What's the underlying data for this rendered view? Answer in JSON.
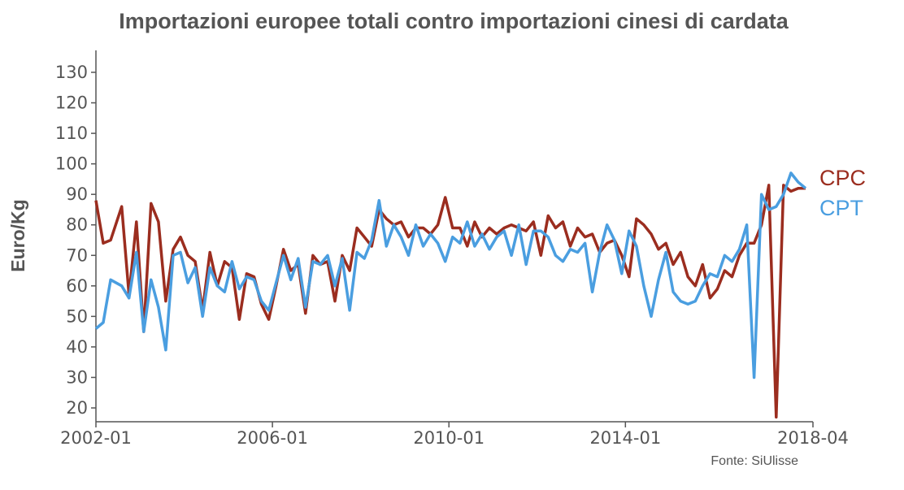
{
  "chart_data": {
    "type": "line",
    "title": "Importazioni europee totali contro importazioni cinesi di cardata",
    "ylabel": "Euro/Kg",
    "xlabel": "",
    "source": "Fonte: SiUlisse",
    "ylim": [
      15,
      138
    ],
    "y_ticks": [
      20,
      30,
      40,
      50,
      60,
      70,
      80,
      90,
      100,
      110,
      120,
      130
    ],
    "x_ticks": [
      "2002-01",
      "2006-01",
      "2010-01",
      "2014-01",
      "2018-04"
    ],
    "x_start": "2002-01",
    "x_end": "2018-04",
    "grid": false,
    "legend": "labels at line ends (right)",
    "series": [
      {
        "name": "CPC",
        "color": "#9b2d1f",
        "points": [
          [
            "2002-01",
            88
          ],
          [
            "2002-03",
            74
          ],
          [
            "2002-05",
            75
          ],
          [
            "2002-08",
            86
          ],
          [
            "2002-10",
            57
          ],
          [
            "2002-12",
            81
          ],
          [
            "2003-02",
            45
          ],
          [
            "2003-04",
            87
          ],
          [
            "2003-06",
            81
          ],
          [
            "2003-08",
            55
          ],
          [
            "2003-10",
            72
          ],
          [
            "2003-12",
            76
          ],
          [
            "2004-02",
            70
          ],
          [
            "2004-04",
            68
          ],
          [
            "2004-06",
            52
          ],
          [
            "2004-08",
            71
          ],
          [
            "2004-10",
            60
          ],
          [
            "2004-12",
            68
          ],
          [
            "2005-02",
            66
          ],
          [
            "2005-04",
            49
          ],
          [
            "2005-06",
            64
          ],
          [
            "2005-08",
            63
          ],
          [
            "2005-10",
            54
          ],
          [
            "2005-12",
            49
          ],
          [
            "2006-02",
            60
          ],
          [
            "2006-04",
            72
          ],
          [
            "2006-06",
            65
          ],
          [
            "2006-08",
            67
          ],
          [
            "2006-10",
            51
          ],
          [
            "2006-12",
            70
          ],
          [
            "2007-02",
            67
          ],
          [
            "2007-04",
            68
          ],
          [
            "2007-06",
            55
          ],
          [
            "2007-08",
            70
          ],
          [
            "2007-10",
            65
          ],
          [
            "2007-12",
            79
          ],
          [
            "2008-02",
            76
          ],
          [
            "2008-04",
            73
          ],
          [
            "2008-06",
            85
          ],
          [
            "2008-08",
            82
          ],
          [
            "2008-10",
            80
          ],
          [
            "2008-12",
            81
          ],
          [
            "2009-02",
            76
          ],
          [
            "2009-04",
            79
          ],
          [
            "2009-06",
            79
          ],
          [
            "2009-08",
            77
          ],
          [
            "2009-10",
            80
          ],
          [
            "2009-12",
            89
          ],
          [
            "2010-02",
            79
          ],
          [
            "2010-04",
            79
          ],
          [
            "2010-06",
            73
          ],
          [
            "2010-08",
            81
          ],
          [
            "2010-10",
            76
          ],
          [
            "2010-12",
            79
          ],
          [
            "2011-02",
            77
          ],
          [
            "2011-04",
            79
          ],
          [
            "2011-06",
            80
          ],
          [
            "2011-08",
            79
          ],
          [
            "2011-10",
            78
          ],
          [
            "2011-12",
            81
          ],
          [
            "2012-02",
            70
          ],
          [
            "2012-04",
            83
          ],
          [
            "2012-06",
            79
          ],
          [
            "2012-08",
            81
          ],
          [
            "2012-10",
            73
          ],
          [
            "2012-12",
            79
          ],
          [
            "2013-02",
            76
          ],
          [
            "2013-04",
            77
          ],
          [
            "2013-06",
            71
          ],
          [
            "2013-08",
            74
          ],
          [
            "2013-10",
            75
          ],
          [
            "2013-12",
            70
          ],
          [
            "2014-02",
            63
          ],
          [
            "2014-04",
            82
          ],
          [
            "2014-06",
            80
          ],
          [
            "2014-08",
            77
          ],
          [
            "2014-10",
            72
          ],
          [
            "2014-12",
            74
          ],
          [
            "2015-02",
            67
          ],
          [
            "2015-04",
            71
          ],
          [
            "2015-06",
            63
          ],
          [
            "2015-08",
            60
          ],
          [
            "2015-10",
            67
          ],
          [
            "2015-12",
            56
          ],
          [
            "2016-02",
            59
          ],
          [
            "2016-04",
            65
          ],
          [
            "2016-06",
            63
          ],
          [
            "2016-08",
            70
          ],
          [
            "2016-10",
            74
          ],
          [
            "2016-12",
            74
          ],
          [
            "2017-02",
            80
          ],
          [
            "2017-04",
            93
          ],
          [
            "2017-06",
            17
          ],
          [
            "2017-08",
            93
          ],
          [
            "2017-10",
            91
          ],
          [
            "2017-12",
            92
          ],
          [
            "2018-02",
            92
          ]
        ]
      },
      {
        "name": "CPT",
        "color": "#4a9ee0",
        "points": [
          [
            "2002-01",
            46
          ],
          [
            "2002-03",
            48
          ],
          [
            "2002-05",
            62
          ],
          [
            "2002-08",
            60
          ],
          [
            "2002-10",
            56
          ],
          [
            "2002-12",
            71
          ],
          [
            "2003-02",
            45
          ],
          [
            "2003-04",
            62
          ],
          [
            "2003-06",
            53
          ],
          [
            "2003-08",
            39
          ],
          [
            "2003-10",
            70
          ],
          [
            "2003-12",
            71
          ],
          [
            "2004-02",
            61
          ],
          [
            "2004-04",
            66
          ],
          [
            "2004-06",
            50
          ],
          [
            "2004-08",
            66
          ],
          [
            "2004-10",
            60
          ],
          [
            "2004-12",
            58
          ],
          [
            "2005-02",
            68
          ],
          [
            "2005-04",
            59
          ],
          [
            "2005-06",
            63
          ],
          [
            "2005-08",
            62
          ],
          [
            "2005-10",
            55
          ],
          [
            "2005-12",
            52
          ],
          [
            "2006-02",
            61
          ],
          [
            "2006-04",
            70
          ],
          [
            "2006-06",
            62
          ],
          [
            "2006-08",
            69
          ],
          [
            "2006-10",
            53
          ],
          [
            "2006-12",
            68
          ],
          [
            "2007-02",
            67
          ],
          [
            "2007-04",
            70
          ],
          [
            "2007-06",
            60
          ],
          [
            "2007-08",
            69
          ],
          [
            "2007-10",
            52
          ],
          [
            "2007-12",
            71
          ],
          [
            "2008-02",
            69
          ],
          [
            "2008-04",
            75
          ],
          [
            "2008-06",
            88
          ],
          [
            "2008-08",
            73
          ],
          [
            "2008-10",
            80
          ],
          [
            "2008-12",
            76
          ],
          [
            "2009-02",
            70
          ],
          [
            "2009-04",
            80
          ],
          [
            "2009-06",
            73
          ],
          [
            "2009-08",
            77
          ],
          [
            "2009-10",
            74
          ],
          [
            "2009-12",
            68
          ],
          [
            "2010-02",
            76
          ],
          [
            "2010-04",
            74
          ],
          [
            "2010-06",
            81
          ],
          [
            "2010-08",
            73
          ],
          [
            "2010-10",
            77
          ],
          [
            "2010-12",
            72
          ],
          [
            "2011-02",
            76
          ],
          [
            "2011-04",
            78
          ],
          [
            "2011-06",
            70
          ],
          [
            "2011-08",
            80
          ],
          [
            "2011-10",
            67
          ],
          [
            "2011-12",
            78
          ],
          [
            "2012-02",
            78
          ],
          [
            "2012-04",
            76
          ],
          [
            "2012-06",
            70
          ],
          [
            "2012-08",
            68
          ],
          [
            "2012-10",
            72
          ],
          [
            "2012-12",
            71
          ],
          [
            "2013-02",
            74
          ],
          [
            "2013-04",
            58
          ],
          [
            "2013-06",
            71
          ],
          [
            "2013-08",
            80
          ],
          [
            "2013-10",
            75
          ],
          [
            "2013-12",
            64
          ],
          [
            "2014-02",
            78
          ],
          [
            "2014-04",
            73
          ],
          [
            "2014-06",
            60
          ],
          [
            "2014-08",
            50
          ],
          [
            "2014-10",
            62
          ],
          [
            "2014-12",
            71
          ],
          [
            "2015-02",
            58
          ],
          [
            "2015-04",
            55
          ],
          [
            "2015-06",
            54
          ],
          [
            "2015-08",
            55
          ],
          [
            "2015-10",
            60
          ],
          [
            "2015-12",
            64
          ],
          [
            "2016-02",
            63
          ],
          [
            "2016-04",
            70
          ],
          [
            "2016-06",
            68
          ],
          [
            "2016-08",
            72
          ],
          [
            "2016-10",
            80
          ],
          [
            "2016-12",
            30
          ],
          [
            "2017-02",
            90
          ],
          [
            "2017-04",
            85
          ],
          [
            "2017-06",
            86
          ],
          [
            "2017-08",
            90
          ],
          [
            "2017-10",
            97
          ],
          [
            "2017-12",
            94
          ],
          [
            "2018-02",
            92
          ]
        ]
      }
    ]
  }
}
